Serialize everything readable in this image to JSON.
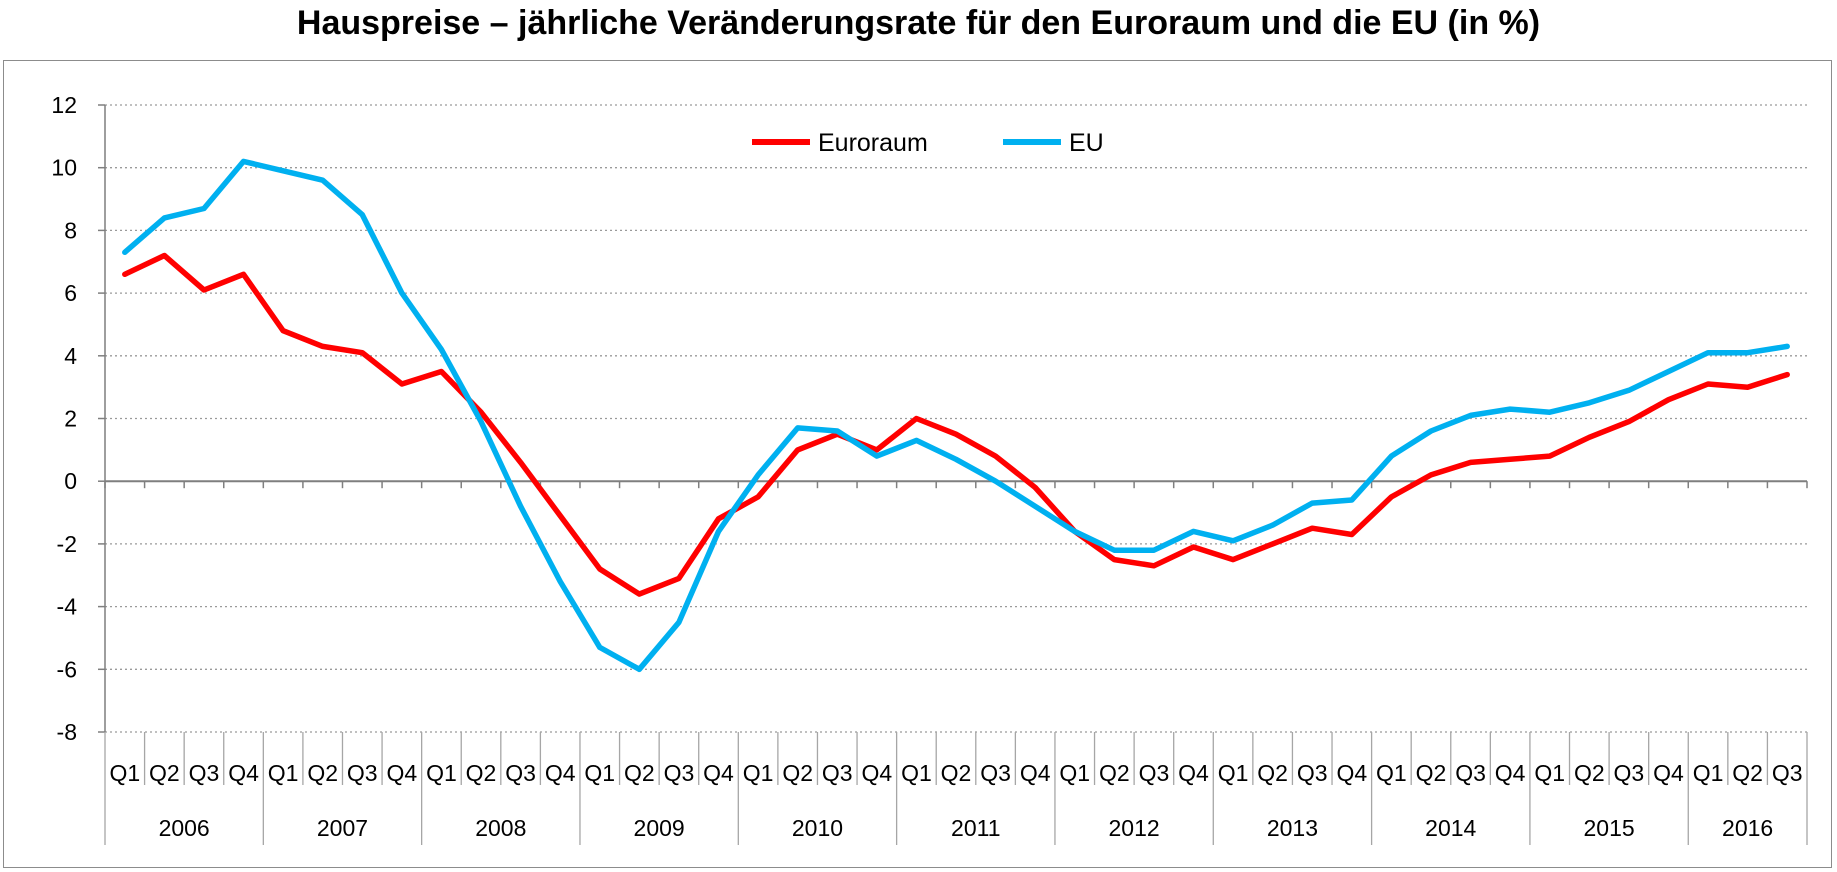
{
  "chart_data": {
    "type": "line",
    "title": "Hauspreise – jährliche Veränderungsrate für den Euroraum und die EU (in %)",
    "xlabel": "",
    "ylabel": "",
    "ylim": [
      -8,
      12
    ],
    "yticks": [
      12,
      10,
      8,
      6,
      4,
      2,
      0,
      -2,
      -4,
      -6,
      -8
    ],
    "grid": true,
    "legend_position": "top-center",
    "quarters": [
      "Q1",
      "Q2",
      "Q3",
      "Q4",
      "Q1",
      "Q2",
      "Q3",
      "Q4",
      "Q1",
      "Q2",
      "Q3",
      "Q4",
      "Q1",
      "Q2",
      "Q3",
      "Q4",
      "Q1",
      "Q2",
      "Q3",
      "Q4",
      "Q1",
      "Q2",
      "Q3",
      "Q4",
      "Q1",
      "Q2",
      "Q3",
      "Q4",
      "Q1",
      "Q2",
      "Q3",
      "Q4",
      "Q1",
      "Q2",
      "Q3",
      "Q4",
      "Q1",
      "Q2",
      "Q3",
      "Q4",
      "Q1",
      "Q2",
      "Q3"
    ],
    "years": [
      {
        "label": "2006",
        "quarters": 4
      },
      {
        "label": "2007",
        "quarters": 4
      },
      {
        "label": "2008",
        "quarters": 4
      },
      {
        "label": "2009",
        "quarters": 4
      },
      {
        "label": "2010",
        "quarters": 4
      },
      {
        "label": "2011",
        "quarters": 4
      },
      {
        "label": "2012",
        "quarters": 4
      },
      {
        "label": "2013",
        "quarters": 4
      },
      {
        "label": "2014",
        "quarters": 4
      },
      {
        "label": "2015",
        "quarters": 4
      },
      {
        "label": "2016",
        "quarters": 3
      }
    ],
    "series": [
      {
        "name": "Euroraum",
        "color": "#ff0000",
        "values": [
          6.6,
          7.2,
          6.1,
          6.6,
          4.8,
          4.3,
          4.1,
          3.1,
          3.5,
          2.2,
          0.6,
          -1.1,
          -2.8,
          -3.6,
          -3.1,
          -1.2,
          -0.5,
          1.0,
          1.5,
          1.0,
          2.0,
          1.5,
          0.8,
          -0.2,
          -1.6,
          -2.5,
          -2.7,
          -2.1,
          -2.5,
          -2.0,
          -1.5,
          -1.7,
          -0.5,
          0.2,
          0.6,
          0.7,
          0.8,
          1.4,
          1.9,
          2.6,
          3.1,
          3.0,
          3.4
        ]
      },
      {
        "name": "EU",
        "color": "#00b0f0",
        "values": [
          7.3,
          8.4,
          8.7,
          10.2,
          9.9,
          9.6,
          8.5,
          6.0,
          4.2,
          1.9,
          -0.8,
          -3.2,
          -5.3,
          -6.0,
          -4.5,
          -1.6,
          0.2,
          1.7,
          1.6,
          0.8,
          1.3,
          0.7,
          0.0,
          -0.8,
          -1.6,
          -2.2,
          -2.2,
          -1.6,
          -1.9,
          -1.4,
          -0.7,
          -0.6,
          0.8,
          1.6,
          2.1,
          2.3,
          2.2,
          2.5,
          2.9,
          3.5,
          4.1,
          4.1,
          4.3
        ]
      }
    ]
  }
}
